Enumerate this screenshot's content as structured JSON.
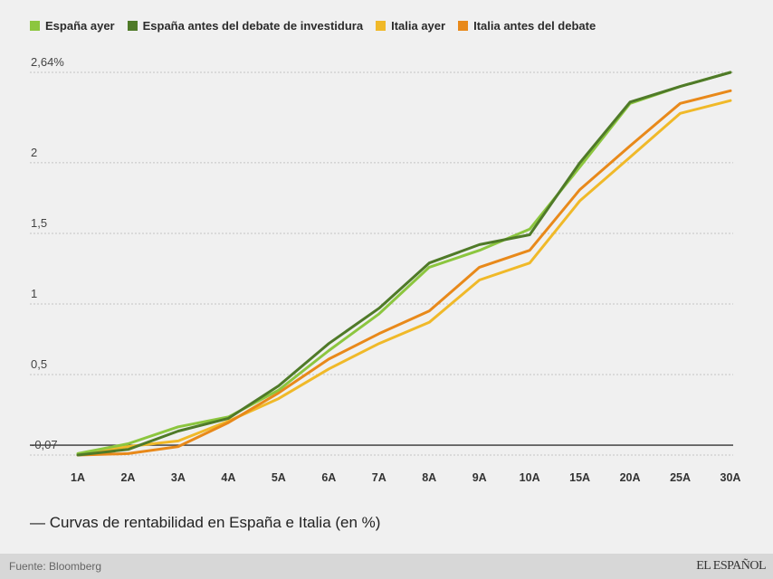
{
  "chart_data": {
    "type": "line",
    "title": "— Curvas de rentabilidad en España e Italia (en %)",
    "xlabel": "",
    "ylabel": "",
    "categories": [
      "1A",
      "2A",
      "3A",
      "4A",
      "5A",
      "6A",
      "7A",
      "8A",
      "9A",
      "10A",
      "15A",
      "20A",
      "25A",
      "30A"
    ],
    "ylim": [
      -0.07,
      2.64
    ],
    "yticks": [
      {
        "value": 2.64,
        "label": "2,64%"
      },
      {
        "value": 2,
        "label": "2"
      },
      {
        "value": 1.5,
        "label": "1,5"
      },
      {
        "value": 1,
        "label": "1"
      },
      {
        "value": 0.5,
        "label": "0,5"
      },
      {
        "value": -0.07,
        "label": "-0,07"
      }
    ],
    "zero_line": true,
    "grid": true,
    "legend_position": "top-left",
    "series": [
      {
        "name": "España ayer",
        "color": "#8cc63f",
        "values": [
          -0.06,
          0.01,
          0.13,
          0.2,
          0.39,
          0.67,
          0.93,
          1.26,
          1.38,
          1.53,
          1.97,
          2.42,
          2.54,
          2.64
        ]
      },
      {
        "name": "España antes del debate de investidura",
        "color": "#4f7a28",
        "values": [
          -0.07,
          -0.03,
          0.1,
          0.19,
          0.42,
          0.72,
          0.97,
          1.29,
          1.42,
          1.49,
          2.0,
          2.43,
          2.54,
          2.64
        ]
      },
      {
        "name": "Italia ayer",
        "color": "#f0b929",
        "values": [
          -0.07,
          -0.01,
          0.03,
          0.17,
          0.33,
          0.54,
          0.72,
          0.87,
          1.17,
          1.29,
          1.73,
          2.04,
          2.35,
          2.44
        ]
      },
      {
        "name": "Italia antes del debate",
        "color": "#e8891a",
        "values": [
          -0.07,
          -0.06,
          -0.01,
          0.16,
          0.37,
          0.61,
          0.79,
          0.95,
          1.26,
          1.38,
          1.81,
          2.12,
          2.42,
          2.51
        ]
      }
    ]
  },
  "subtitle": "— Curvas de rentabilidad en España e Italia (en %)",
  "footer": {
    "source": "Fuente: Bloomberg",
    "logo": "EL ESPAÑOL"
  }
}
